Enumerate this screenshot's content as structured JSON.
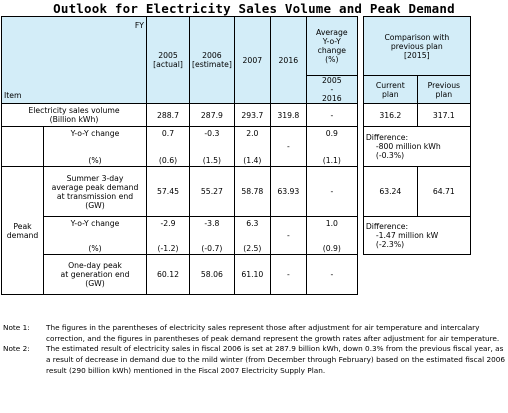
{
  "title": "Outlook for Electricity Sales Volume and Peak Demand",
  "header": {
    "fy": "FY",
    "item": "Item",
    "col_2005": "2005",
    "col_2005_sub": "[actual]",
    "col_2006": "2006",
    "col_2006_sub": "[estimate]",
    "col_2007": "2007",
    "col_2016": "2016",
    "avg_change_1": "Average",
    "avg_change_2": "Y-o-Y",
    "avg_change_3": "change",
    "avg_change_4": "(%)",
    "avg_period_1": "2005",
    "avg_period_2": "-",
    "avg_period_3": "2016",
    "comparison_1": "Comparison with",
    "comparison_2": "previous plan",
    "comparison_3": "[2015]",
    "current_plan_1": "Current",
    "current_plan_2": "plan",
    "previous_plan_1": "Previous",
    "previous_plan_2": "plan"
  },
  "sales": {
    "label_1": "Electricity sales volume",
    "label_2": "(Billion kWh)",
    "v2005": "288.7",
    "v2006": "287.9",
    "v2007": "293.7",
    "v2016": "319.8",
    "avg": "-",
    "current": "316.2",
    "previous": "317.1",
    "yoy_label": "Y-o-Y change",
    "yoy_unit": "(%)",
    "yoy_2005": "0.7",
    "yoy_2005_adj": "(0.6)",
    "yoy_2006": "-0.3",
    "yoy_2006_adj": "(1.5)",
    "yoy_2007": "2.0",
    "yoy_2007_adj": "(1.4)",
    "yoy_2016": "-",
    "yoy_avg": "0.9",
    "yoy_avg_adj": "(1.1)",
    "difference_1": "Difference:",
    "difference_2": "-800 million kWh",
    "difference_3": "(-0.3%)"
  },
  "peak": {
    "group_1": "Peak",
    "group_2": "demand",
    "summer_1": "Summer 3-day",
    "summer_2": "average peak demand",
    "summer_3": "at transmission end",
    "summer_4": "(GW)",
    "s2005": "57.45",
    "s2006": "55.27",
    "s2007": "58.78",
    "s2016": "63.93",
    "savg": "-",
    "current": "63.24",
    "previous": "64.71",
    "yoy_label": "Y-o-Y change",
    "yoy_unit": "(%)",
    "yoy_2005": "-2.9",
    "yoy_2005_adj": "(-1.2)",
    "yoy_2006": "-3.8",
    "yoy_2006_adj": "(-0.7)",
    "yoy_2007": "6.3",
    "yoy_2007_adj": "(2.5)",
    "yoy_2016": "-",
    "yoy_avg": "1.0",
    "yoy_avg_adj": "(0.9)",
    "difference_1": "Difference:",
    "difference_2": "-1.47 million kW",
    "difference_3": "(-2.3%)",
    "oneday_1": "One-day peak",
    "oneday_2": "at generation end",
    "oneday_3": "(GW)",
    "o2005": "60.12",
    "o2006": "58.06",
    "o2007": "61.10",
    "o2016": "-",
    "oavg": "-"
  },
  "notes": [
    {
      "label": "Note 1:",
      "text": "The figures in the parentheses of electricity sales represent those after adjustment for air temperature and intercalary correction, and the figures in parentheses of peak demand represent the growth rates after adjustment for air temperature."
    },
    {
      "label": "Note 2:",
      "text": "The estimated result of electricity sales in fiscal 2006 is set at 287.9 billion kWh, down 0.3% from the previous fiscal year, as a result of decrease in demand due to the mild winter (from December through February) based on the estimated fiscal 2006 result (290 billion kWh) mentioned in the Fiscal 2007 Electricity Supply Plan."
    }
  ]
}
